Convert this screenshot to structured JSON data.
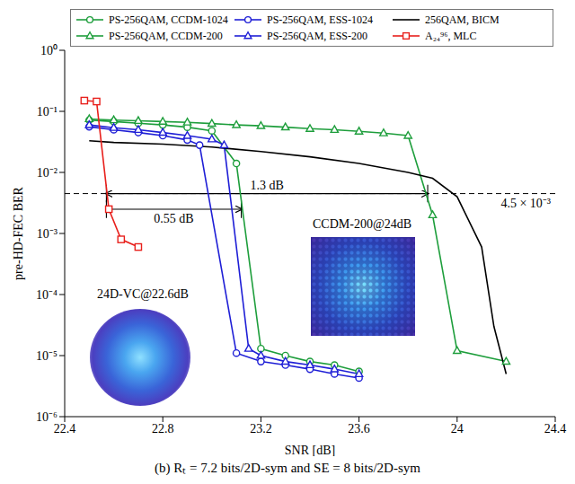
{
  "chart_data": {
    "type": "line",
    "caption": "(b) Rₜ = 7.2 bits/2D-sym and SE = 8 bits/2D-sym",
    "x_label": "SNR [dB]",
    "y_label": "pre-HD-FEC BER",
    "log": "y",
    "grid": false,
    "legend": "top",
    "xlim": [
      22.4,
      24.4
    ],
    "xticks": [
      22.4,
      22.8,
      23.2,
      23.6,
      24,
      24.4
    ],
    "ylim": [
      1e-06,
      1
    ],
    "yticks": [
      {
        "value": 1e-06,
        "label": "10⁻⁶"
      },
      {
        "value": 1e-05,
        "label": "10⁻⁵"
      },
      {
        "value": 0.0001,
        "label": "10⁻⁴"
      },
      {
        "value": 0.001,
        "label": "10⁻³"
      },
      {
        "value": 0.01,
        "label": "10⁻²"
      },
      {
        "value": 0.1,
        "label": "10⁻¹"
      },
      {
        "value": 1,
        "label": "10⁰"
      }
    ],
    "series": [
      {
        "name": "PS-256QAM, CCDM-1024",
        "color": "#1e9e3c",
        "marker": "circle",
        "line_style": "solid",
        "x": [
          22.5,
          22.6,
          22.7,
          22.8,
          22.9,
          23.0,
          23.1,
          23.2,
          23.3,
          23.4,
          23.5,
          23.6
        ],
        "values": [
          0.072,
          0.068,
          0.064,
          0.06,
          0.055,
          0.048,
          0.014,
          1.3e-05,
          1e-05,
          8e-06,
          7e-06,
          5.5e-06
        ]
      },
      {
        "name": "PS-256QAM, CCDM-200",
        "color": "#1e9e3c",
        "marker": "triangle",
        "line_style": "solid",
        "x": [
          22.5,
          22.6,
          22.7,
          22.8,
          22.9,
          23.0,
          23.1,
          23.2,
          23.3,
          23.4,
          23.5,
          23.6,
          23.7,
          23.8,
          23.9,
          24.0,
          24.2
        ],
        "values": [
          0.075,
          0.072,
          0.07,
          0.068,
          0.066,
          0.063,
          0.06,
          0.058,
          0.055,
          0.052,
          0.05,
          0.047,
          0.044,
          0.04,
          0.002,
          1.2e-05,
          8e-06
        ]
      },
      {
        "name": "PS-256QAM, ESS-1024",
        "color": "#1f1fd6",
        "marker": "circle",
        "line_style": "solid",
        "x": [
          22.5,
          22.6,
          22.7,
          22.8,
          22.9,
          22.95,
          23.1,
          23.2,
          23.3,
          23.4,
          23.5,
          23.6
        ],
        "values": [
          0.056,
          0.05,
          0.045,
          0.04,
          0.034,
          0.028,
          1.1e-05,
          8e-06,
          7e-06,
          6e-06,
          5e-06,
          4.3e-06
        ]
      },
      {
        "name": "PS-256QAM, ESS-200",
        "color": "#1f1fd6",
        "marker": "triangle",
        "line_style": "solid",
        "x": [
          22.5,
          22.6,
          22.7,
          22.8,
          22.9,
          23.0,
          23.05,
          23.15,
          23.2,
          23.3,
          23.4,
          23.5,
          23.6
        ],
        "values": [
          0.06,
          0.054,
          0.05,
          0.045,
          0.04,
          0.035,
          0.028,
          1.3e-05,
          1e-05,
          8e-06,
          7e-06,
          6e-06,
          5e-06
        ]
      },
      {
        "name": "256QAM, BICM",
        "color": "#000000",
        "marker": "none",
        "line_style": "solid",
        "x": [
          22.5,
          22.6,
          22.8,
          23.0,
          23.2,
          23.4,
          23.6,
          23.8,
          23.9,
          24.0,
          24.1,
          24.15,
          24.2
        ],
        "values": [
          0.033,
          0.031,
          0.029,
          0.026,
          0.022,
          0.018,
          0.014,
          0.01,
          0.008,
          0.004,
          0.0006,
          3e-05,
          5e-06
        ]
      },
      {
        "name": "A₂₄⁹⁶, MLC",
        "color": "#e8201c",
        "marker": "square",
        "line_style": "solid",
        "x": [
          22.48,
          22.53,
          22.58,
          22.63,
          22.7
        ],
        "values": [
          0.15,
          0.145,
          0.0025,
          0.0008,
          0.0006
        ]
      }
    ],
    "threshold": {
      "value": 0.0045,
      "label": "4.5 × 10⁻³"
    },
    "gaps": [
      {
        "label": "1.3 dB",
        "from": 22.57,
        "to": 23.88,
        "at": 0.0045
      },
      {
        "label": "0.55 dB",
        "from": 22.57,
        "to": 23.12,
        "at": 0.0025
      }
    ],
    "insets": [
      "24D-VC@22.6dB",
      "CCDM-200@24dB"
    ]
  }
}
